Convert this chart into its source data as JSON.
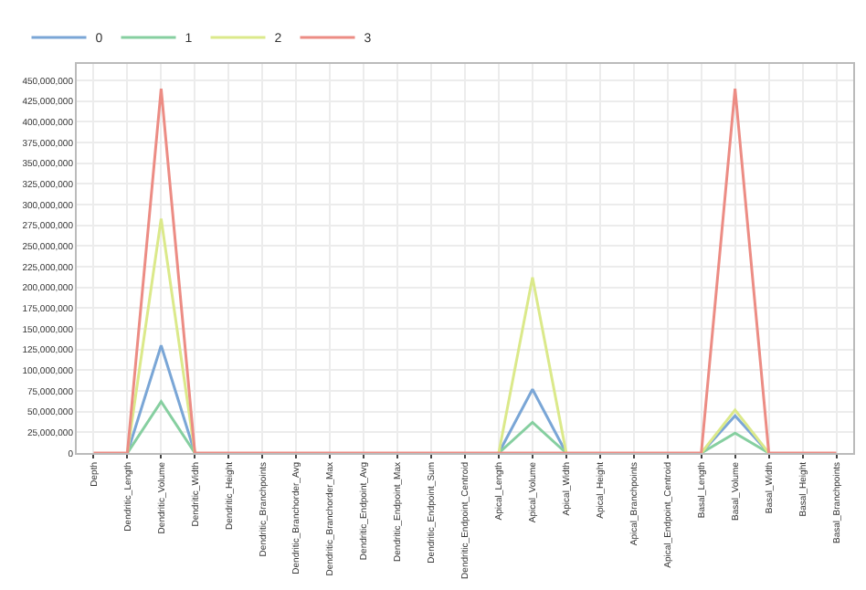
{
  "chart_data": {
    "type": "line",
    "categories": [
      "Depth",
      "Dendritic_Length",
      "Dendritic_Volume",
      "Dendritic_Width",
      "Dendritic_Height",
      "Dendritic_Branchpoints",
      "Dendritic_Branchorder_Avg",
      "Dendritic_Branchorder_Max",
      "Dendritic_Endpoint_Avg",
      "Dendritic_Endpoint_Max",
      "Dendritic_Endpoint_Sum",
      "Dendritic_Endpoint_Centroid",
      "Apical_Length",
      "Apical_Volume",
      "Apical_Width",
      "Apical_Height",
      "Apical_Branchpoints",
      "Apical_Endpoint_Centroid",
      "Basal_Length",
      "Basal_Volume",
      "Basal_Width",
      "Basal_Height",
      "Basal_Branchpoints"
    ],
    "series": [
      {
        "name": "0",
        "color": "#7aa6d6",
        "values": [
          null,
          0,
          130000000,
          0,
          null,
          null,
          null,
          null,
          null,
          null,
          null,
          null,
          0,
          77000000,
          0,
          null,
          null,
          null,
          0,
          45000000,
          0,
          null,
          null
        ]
      },
      {
        "name": "1",
        "color": "#86cfa0",
        "values": [
          null,
          0,
          62000000,
          0,
          null,
          null,
          null,
          null,
          null,
          null,
          null,
          null,
          0,
          37000000,
          0,
          null,
          null,
          null,
          0,
          24000000,
          0,
          null,
          null
        ]
      },
      {
        "name": "2",
        "color": "#dbe98a",
        "values": [
          null,
          0,
          283000000,
          0,
          null,
          null,
          null,
          null,
          null,
          null,
          null,
          null,
          0,
          212000000,
          0,
          null,
          null,
          null,
          0,
          52000000,
          0,
          null,
          null
        ]
      },
      {
        "name": "3",
        "color": "#ec8c84",
        "values": [
          0,
          0,
          440000000,
          0,
          0,
          0,
          0,
          0,
          0,
          0,
          0,
          0,
          0,
          0,
          0,
          0,
          0,
          0,
          0,
          440000000,
          0,
          0,
          0
        ]
      }
    ],
    "ylim": [
      0,
      470000000
    ],
    "yticks": [
      0,
      {
        "value": 25000000,
        "label": "25,000,000"
      },
      {
        "value": 50000000,
        "label": "50,000,000"
      },
      {
        "value": 75000000,
        "label": "75,000,000"
      },
      {
        "value": 100000000,
        "label": "100,000,000"
      },
      {
        "value": 125000000,
        "label": "125,000,000"
      },
      {
        "value": 150000000,
        "label": "150,000,000"
      },
      {
        "value": 175000000,
        "label": "175,000,000"
      },
      {
        "value": 200000000,
        "label": "200,000,000"
      },
      {
        "value": 225000000,
        "label": "225,000,000"
      },
      {
        "value": 250000000,
        "label": "250,000,000"
      },
      {
        "value": 275000000,
        "label": "275,000,000"
      },
      {
        "value": 300000000,
        "label": "300,000,000"
      },
      {
        "value": 325000000,
        "label": "325,000,000"
      },
      {
        "value": 350000000,
        "label": "350,000,000"
      },
      {
        "value": 375000000,
        "label": "375,000,000"
      },
      {
        "value": 400000000,
        "label": "400,000,000"
      },
      {
        "value": 425000000,
        "label": "425,000,000"
      },
      {
        "value": 450000000,
        "label": "450,000,000"
      }
    ],
    "grid": true,
    "legend": "top left",
    "marker": "none",
    "line_style": "solid"
  }
}
